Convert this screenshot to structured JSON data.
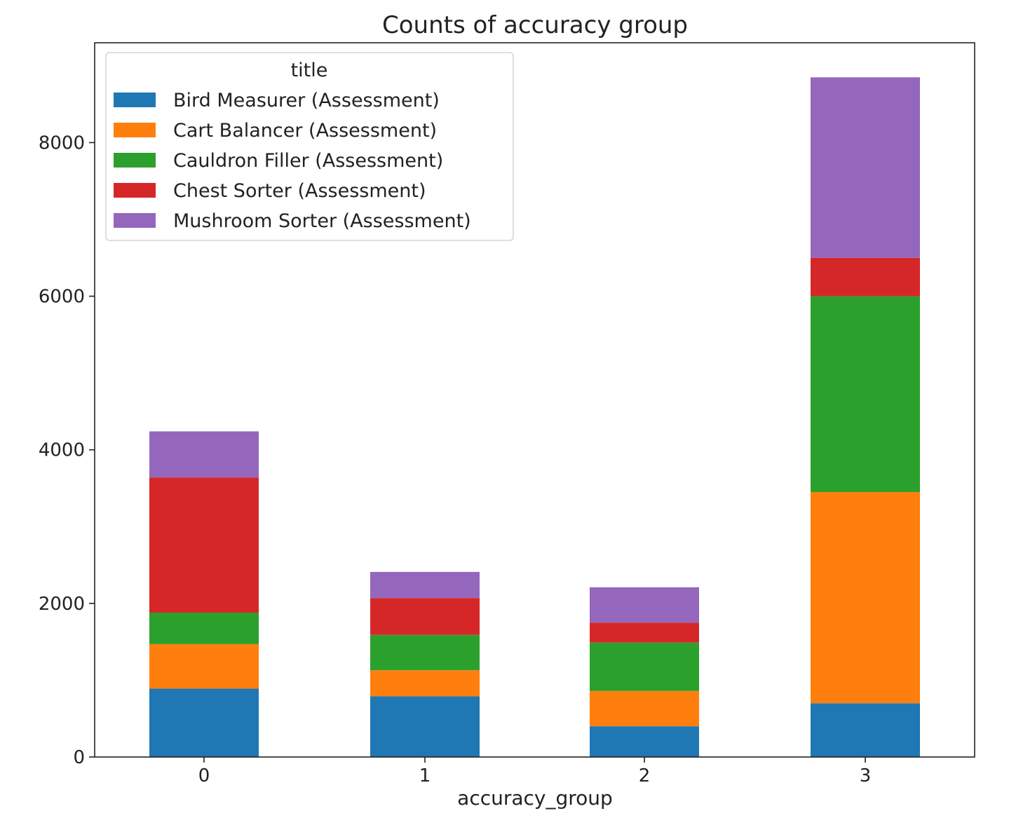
{
  "chart_data": {
    "type": "bar",
    "stacked": true,
    "title": "Counts of accuracy group",
    "xlabel": "accuracy_group",
    "ylabel": "",
    "categories": [
      "0",
      "1",
      "2",
      "3"
    ],
    "ylim": [
      0,
      9300
    ],
    "yticks": [
      0,
      2000,
      4000,
      6000,
      8000
    ],
    "ytick_labels": [
      "0",
      "2000",
      "4000",
      "6000",
      "8000"
    ],
    "grid": false,
    "legend": {
      "title": "title",
      "placement": "upper-left"
    },
    "series": [
      {
        "name": "Bird Measurer (Assessment)",
        "color": "#1f77b4",
        "values": [
          890,
          790,
          400,
          700
        ]
      },
      {
        "name": "Cart Balancer (Assessment)",
        "color": "#ff7f0e",
        "values": [
          580,
          340,
          460,
          2750
        ]
      },
      {
        "name": "Cauldron Filler (Assessment)",
        "color": "#2ca02c",
        "values": [
          410,
          460,
          630,
          2550
        ]
      },
      {
        "name": "Chest Sorter (Assessment)",
        "color": "#d62728",
        "values": [
          1760,
          480,
          260,
          500
        ]
      },
      {
        "name": "Mushroom Sorter (Assessment)",
        "color": "#9467bd",
        "values": [
          600,
          340,
          460,
          2350
        ]
      }
    ]
  }
}
